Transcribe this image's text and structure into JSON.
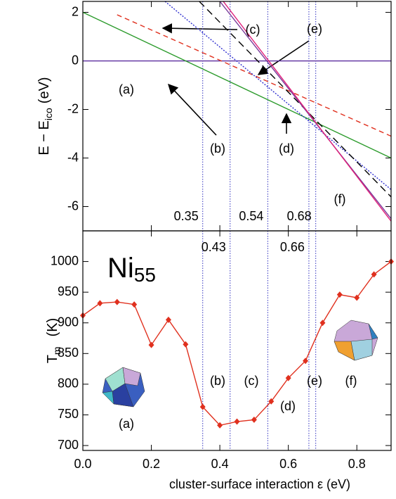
{
  "chart_data": [
    {
      "type": "line",
      "ylabel": {
        "main": "E − E",
        "sub": "ico",
        "unit": "(eV)"
      },
      "xlim": [
        0,
        0.9
      ],
      "ylim": [
        -7,
        2.45
      ],
      "yticks": [
        2,
        0,
        -2,
        -4,
        -6
      ],
      "series": [
        {
          "color": "#5b2d9e",
          "dash": "none",
          "x": [
            0,
            0.9
          ],
          "values": [
            0,
            0
          ]
        },
        {
          "color": "#2a9a2a",
          "dash": "none",
          "x": [
            0,
            0.9
          ],
          "values": [
            2,
            -4
          ]
        },
        {
          "color": "#e0301e",
          "dash": "7,5",
          "x": [
            0.1,
            0.9
          ],
          "values": [
            1.9,
            -3.1
          ]
        },
        {
          "color": "#3030d0",
          "dash": "2,2",
          "x": [
            0.24,
            0.9
          ],
          "values": [
            2.45,
            -5.3
          ]
        },
        {
          "color": "#000000",
          "dash": "10,6",
          "x": [
            0.34,
            0.9
          ],
          "values": [
            2.45,
            -5.6
          ]
        },
        {
          "color": "#7a3a9a",
          "dash": "none",
          "x": [
            0.4,
            0.9
          ],
          "values": [
            2.45,
            -6.5
          ]
        },
        {
          "color": "#e0207a",
          "dash": "none",
          "x": [
            0.41,
            0.9
          ],
          "values": [
            2.45,
            -6.6
          ]
        }
      ],
      "vlines": [
        0.35,
        0.43,
        0.54,
        0.66,
        0.68
      ],
      "annotations": [
        "(a)",
        "(b)",
        "(c)",
        "(d)",
        "(e)",
        "(f)"
      ]
    },
    {
      "type": "line",
      "title": {
        "main": "Ni",
        "sub": "55"
      },
      "xlabel": "cluster-surface interaction  ε (eV)",
      "ylabel": {
        "main": "T",
        "sub": "m",
        "unit": "(K)"
      },
      "xlim": [
        0,
        0.9
      ],
      "ylim": [
        692,
        1050
      ],
      "xticks": [
        {
          "value": 0,
          "label": "0.0"
        },
        0.2,
        0.4,
        0.6,
        0.8
      ],
      "yticks": [
        1000,
        950,
        900,
        850,
        800,
        750,
        700
      ],
      "series": [
        {
          "color": "#e0301e",
          "x": [
            0,
            0.05,
            0.1,
            0.15,
            0.2,
            0.25,
            0.3,
            0.35,
            0.4,
            0.45,
            0.5,
            0.55,
            0.6,
            0.65,
            0.7,
            0.75,
            0.8,
            0.85,
            0.9
          ],
          "values": [
            912,
            932,
            934,
            930,
            864,
            905,
            865,
            763,
            733,
            739,
            742,
            772,
            810,
            838,
            900,
            946,
            941,
            979,
            1000
          ]
        }
      ],
      "annotations": [
        "(a)",
        "(b)",
        "(c)",
        "(d)",
        "(e)",
        "(f)"
      ]
    }
  ]
}
